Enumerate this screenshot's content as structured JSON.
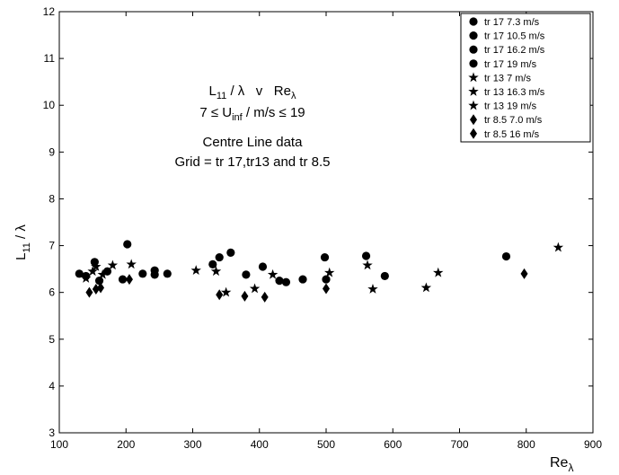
{
  "chart_data": {
    "type": "scatter",
    "xlim": [
      100,
      900
    ],
    "ylim": [
      3,
      12
    ],
    "x_ticks": [
      100,
      200,
      300,
      400,
      500,
      600,
      700,
      800,
      900
    ],
    "y_ticks": [
      3,
      4,
      5,
      6,
      7,
      8,
      9,
      10,
      11,
      12
    ],
    "xlabel": {
      "main": "Re",
      "sub": "λ"
    },
    "ylabel": {
      "main": "L",
      "sub": "11",
      "tail": " / λ"
    },
    "grid": false,
    "legend_position": "top-right",
    "annotation": {
      "line1": {
        "a": "L",
        "a_sub": "11",
        "b": " / λ   v   Re",
        "b_sub": "λ"
      },
      "line2": {
        "a": "7 ≤ U",
        "a_sub": "inf",
        "b": " / m/s ≤ 19"
      },
      "line3": "Centre Line data",
      "line4": "Grid = tr 17,tr13 and tr 8.5"
    },
    "series": [
      {
        "name": "tr 17 7.3 m/s",
        "marker": "circle",
        "points": [
          [
            130,
            6.4
          ],
          [
            153,
            6.65
          ],
          [
            160,
            6.25
          ],
          [
            172,
            6.45
          ],
          [
            195,
            6.28
          ]
        ]
      },
      {
        "name": "tr 17 10.5 m/s",
        "marker": "circle",
        "points": [
          [
            140,
            6.35
          ],
          [
            202,
            7.03
          ],
          [
            225,
            6.4
          ],
          [
            243,
            6.47
          ],
          [
            262,
            6.4
          ]
        ]
      },
      {
        "name": "tr 17 16.2 m/s",
        "marker": "circle",
        "points": [
          [
            243,
            6.38
          ],
          [
            330,
            6.6
          ],
          [
            340,
            6.75
          ],
          [
            357,
            6.85
          ],
          [
            380,
            6.38
          ],
          [
            405,
            6.55
          ],
          [
            430,
            6.25
          ]
        ]
      },
      {
        "name": "tr 17 19 m/s",
        "marker": "circle",
        "points": [
          [
            440,
            6.22
          ],
          [
            465,
            6.28
          ],
          [
            498,
            6.75
          ],
          [
            500,
            6.28
          ],
          [
            560,
            6.78
          ],
          [
            588,
            6.35
          ],
          [
            770,
            6.77
          ]
        ]
      },
      {
        "name": "tr 13 7  m/s",
        "marker": "star",
        "points": [
          [
            140,
            6.3
          ],
          [
            150,
            6.45
          ],
          [
            155,
            6.55
          ],
          [
            165,
            6.38
          ],
          [
            180,
            6.58
          ],
          [
            208,
            6.6
          ]
        ]
      },
      {
        "name": "tr 13 16.3 m/s",
        "marker": "star",
        "points": [
          [
            305,
            6.47
          ],
          [
            335,
            6.45
          ],
          [
            350,
            6.0
          ],
          [
            393,
            6.08
          ],
          [
            420,
            6.38
          ]
        ]
      },
      {
        "name": "tr 13 19 m/s",
        "marker": "star",
        "points": [
          [
            505,
            6.42
          ],
          [
            562,
            6.58
          ],
          [
            570,
            6.07
          ],
          [
            650,
            6.1
          ],
          [
            668,
            6.42
          ],
          [
            848,
            6.96
          ]
        ]
      },
      {
        "name": "tr 8.5 7.0 m/s",
        "marker": "diamond",
        "points": [
          [
            145,
            6.0
          ],
          [
            155,
            6.07
          ],
          [
            162,
            6.1
          ],
          [
            205,
            6.28
          ]
        ]
      },
      {
        "name": "tr 8.5 16 m/s",
        "marker": "diamond",
        "points": [
          [
            340,
            5.95
          ],
          [
            378,
            5.92
          ],
          [
            408,
            5.9
          ],
          [
            500,
            6.08
          ],
          [
            797,
            6.4
          ]
        ]
      }
    ]
  }
}
